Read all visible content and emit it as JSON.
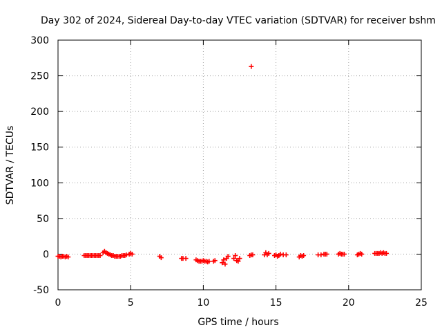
{
  "chart_data": {
    "type": "scatter",
    "title": "Day 302 of 2024, Sidereal Day-to-day VTEC variation (SDTVAR) for receiver bshm",
    "xlabel": "GPS time / hours",
    "ylabel": "SDTVAR / TECUs",
    "xlim": [
      0,
      25
    ],
    "ylim": [
      -50,
      300
    ],
    "xticks": [
      0,
      5,
      10,
      15,
      20,
      25
    ],
    "yticks": [
      -50,
      0,
      50,
      100,
      150,
      200,
      250,
      300
    ],
    "grid": true,
    "marker": "plus",
    "color": "#ff0000",
    "series": [
      {
        "name": "SDTVAR",
        "x": [
          0.0,
          0.1,
          0.2,
          0.3,
          0.4,
          0.5,
          0.6,
          0.7,
          1.8,
          1.9,
          2.0,
          2.1,
          2.2,
          2.3,
          2.4,
          2.5,
          2.6,
          2.7,
          2.8,
          2.9,
          3.1,
          3.2,
          3.3,
          3.4,
          3.5,
          3.6,
          3.7,
          3.8,
          3.9,
          4.0,
          4.1,
          4.2,
          4.3,
          4.4,
          4.5,
          4.6,
          4.7,
          4.9,
          5.0,
          5.1,
          7.0,
          7.1,
          8.5,
          8.6,
          8.8,
          9.5,
          9.6,
          9.7,
          9.8,
          9.9,
          10.0,
          10.1,
          10.2,
          10.3,
          10.4,
          10.7,
          10.8,
          11.3,
          11.4,
          11.5,
          11.6,
          11.7,
          12.1,
          12.2,
          12.3,
          12.4,
          12.5,
          13.2,
          13.3,
          13.4,
          14.2,
          14.3,
          14.4,
          14.5,
          14.9,
          15.0,
          15.1,
          15.2,
          15.3,
          15.5,
          15.7,
          16.6,
          16.7,
          16.8,
          16.9,
          17.9,
          18.1,
          18.3,
          18.4,
          18.5,
          19.3,
          19.4,
          19.5,
          19.6,
          19.7,
          20.6,
          20.7,
          20.8,
          20.9,
          21.8,
          21.9,
          22.0,
          22.1,
          22.2,
          22.3,
          22.4,
          22.5,
          22.6,
          13.3
        ],
        "y": [
          -3,
          -3,
          -4,
          -3,
          -3,
          -4,
          -3,
          -4,
          -2,
          -2,
          -2,
          -2,
          -2,
          -2,
          -2,
          -2,
          -2,
          -2,
          -2,
          -2,
          2,
          4,
          2,
          1,
          0,
          -1,
          -2,
          -2,
          -3,
          -3,
          -3,
          -3,
          -3,
          -2,
          -2,
          -2,
          -1,
          0,
          1,
          0,
          -3,
          -5,
          -6,
          -6,
          -6,
          -8,
          -9,
          -10,
          -10,
          -10,
          -9,
          -10,
          -10,
          -11,
          -10,
          -10,
          -9,
          -12,
          -8,
          -14,
          -6,
          -3,
          -6,
          -2,
          -9,
          -10,
          -6,
          -2,
          -1,
          -1,
          -1,
          2,
          -1,
          1,
          -2,
          -1,
          -3,
          -2,
          0,
          -1,
          -1,
          -4,
          -2,
          -3,
          -2,
          -1,
          -1,
          0,
          0,
          0,
          0,
          1,
          0,
          0,
          0,
          -1,
          0,
          1,
          0,
          1,
          1,
          1,
          1,
          2,
          1,
          2,
          1,
          1,
          263
        ]
      }
    ]
  }
}
